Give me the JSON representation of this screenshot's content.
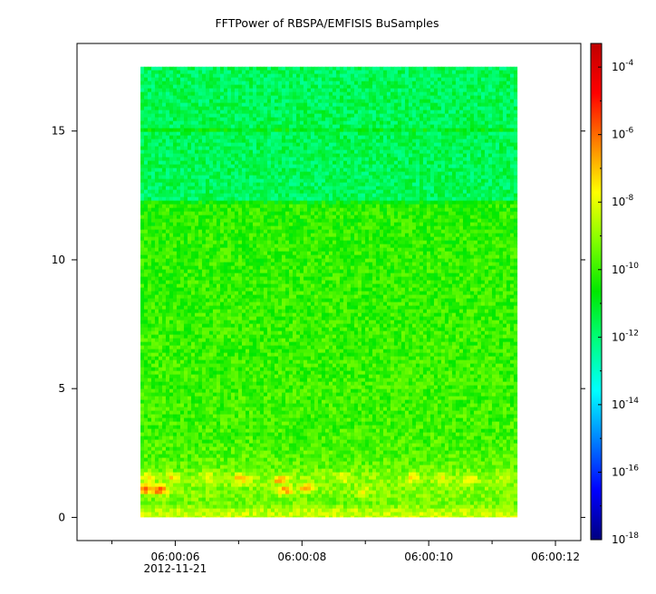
{
  "chart_data": {
    "type": "heatmap",
    "title": "FFTPower of RBSPA/EMFISIS  BuSamples",
    "xlabel": "",
    "ylabel": "",
    "x_ticks": [
      {
        "value": 6,
        "label": "06:00:06",
        "sublabel": "2012-11-21"
      },
      {
        "value": 8,
        "label": "06:00:08",
        "sublabel": ""
      },
      {
        "value": 10,
        "label": "06:00:10",
        "sublabel": ""
      },
      {
        "value": 12,
        "label": "06:00:12",
        "sublabel": ""
      }
    ],
    "x_minor_ticks": [
      5,
      7,
      9,
      11
    ],
    "xlim": [
      4.45,
      12.4
    ],
    "y_ticks": [
      {
        "value": 0,
        "label": "0"
      },
      {
        "value": 5,
        "label": "5"
      },
      {
        "value": 10,
        "label": "10"
      },
      {
        "value": 15,
        "label": "15"
      }
    ],
    "ylim": [
      -0.9,
      18.4
    ],
    "data_extent": {
      "x": [
        5.45,
        11.4
      ],
      "y": [
        0,
        17.5
      ]
    },
    "colorbar": {
      "scale": "log",
      "range": [
        -18,
        -3.3
      ],
      "ticks": [
        {
          "base": "10",
          "exp": "-4"
        },
        {
          "base": "10",
          "exp": "-6"
        },
        {
          "base": "10",
          "exp": "-8"
        },
        {
          "base": "10",
          "exp": "-10"
        },
        {
          "base": "10",
          "exp": "-12"
        },
        {
          "base": "10",
          "exp": "-14"
        },
        {
          "base": "10",
          "exp": "-16"
        },
        {
          "base": "10",
          "exp": "-18"
        }
      ],
      "colormap": [
        "#00007f",
        "#0000ff",
        "#0080ff",
        "#00ffff",
        "#00ff80",
        "#00e800",
        "#80ff00",
        "#ffff00",
        "#ff8000",
        "#ff0000",
        "#c00000"
      ]
    },
    "power_profile_log10": [
      {
        "y": 0.0,
        "value": -8.3
      },
      {
        "y": 0.3,
        "value": -8.6
      },
      {
        "y": 0.5,
        "value": -9.4
      },
      {
        "y": 1.0,
        "value": -9.2
      },
      {
        "y": 1.5,
        "value": -9.0
      },
      {
        "y": 2.0,
        "value": -9.6
      },
      {
        "y": 3.0,
        "value": -9.9
      },
      {
        "y": 6.0,
        "value": -10.0
      },
      {
        "y": 10.0,
        "value": -10.1
      },
      {
        "y": 12.2,
        "value": -10.2
      },
      {
        "y": 12.3,
        "value": -11.7
      },
      {
        "y": 14.9,
        "value": -11.6
      },
      {
        "y": 15.0,
        "value": -10.5
      },
      {
        "y": 15.1,
        "value": -11.6
      },
      {
        "y": 17.5,
        "value": -11.7
      }
    ],
    "hotspots": [
      {
        "x": 5.55,
        "y": 1.1,
        "value": -5.8
      },
      {
        "x": 5.75,
        "y": 1.05,
        "value": -5.2
      },
      {
        "x": 5.55,
        "y": 1.55,
        "value": -7.5
      },
      {
        "x": 5.95,
        "y": 1.55,
        "value": -7.6
      },
      {
        "x": 6.5,
        "y": 1.55,
        "value": -7.8
      },
      {
        "x": 7.05,
        "y": 1.5,
        "value": -6.6
      },
      {
        "x": 7.65,
        "y": 1.45,
        "value": -6.7
      },
      {
        "x": 7.75,
        "y": 1.05,
        "value": -6.3
      },
      {
        "x": 8.05,
        "y": 1.15,
        "value": -7.0
      },
      {
        "x": 8.65,
        "y": 1.55,
        "value": -7.7
      },
      {
        "x": 8.95,
        "y": 1.0,
        "value": -8.0
      },
      {
        "x": 9.75,
        "y": 1.55,
        "value": -7.8
      },
      {
        "x": 10.2,
        "y": 1.55,
        "value": -7.7
      },
      {
        "x": 10.65,
        "y": 1.5,
        "value": -7.9
      },
      {
        "x": 11.2,
        "y": 1.55,
        "value": -8.0
      }
    ]
  }
}
